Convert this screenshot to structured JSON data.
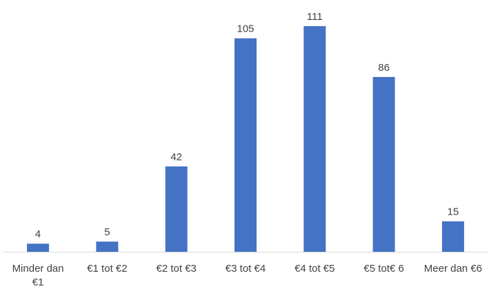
{
  "chart_data": {
    "type": "bar",
    "categories": [
      [
        "Minder dan",
        "€1"
      ],
      [
        "€1 tot €2"
      ],
      [
        "€2 tot €3"
      ],
      [
        "€3 tot €4"
      ],
      [
        "€4 tot €5"
      ],
      [
        "€5 tot€ 6"
      ],
      [
        "Meer dan €6"
      ]
    ],
    "values": [
      4,
      5,
      42,
      105,
      111,
      86,
      15
    ],
    "title": "",
    "xlabel": "",
    "ylabel": "",
    "ylim": [
      0,
      115
    ],
    "grid": false,
    "legend": "none",
    "bar_color": "#4472C4",
    "axis_color": "#D9D9D9",
    "text_color": "#404040"
  }
}
